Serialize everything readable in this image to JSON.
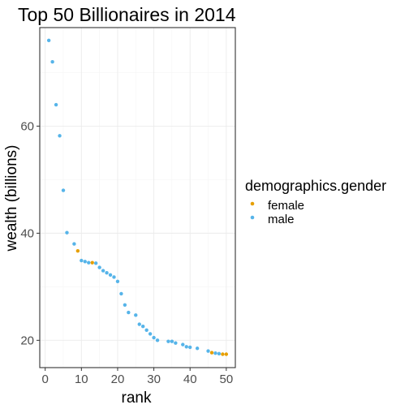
{
  "chart_data": {
    "type": "scatter",
    "title": "Top 50 Billionaires in 2014",
    "xlabel": "rank",
    "ylabel": "wealth (billions)",
    "xlim": [
      -1.5,
      52.5
    ],
    "ylim": [
      14.9,
      78.4
    ],
    "x_ticks": [
      0,
      10,
      20,
      30,
      40,
      50
    ],
    "y_ticks": [
      20,
      40,
      60
    ],
    "grid": true,
    "legend": {
      "title": "demographics.gender",
      "position": "right",
      "entries": [
        {
          "label": "female",
          "color": "#E69F00"
        },
        {
          "label": "male",
          "color": "#56B4E9"
        }
      ]
    },
    "series": [
      {
        "name": "female",
        "color": "#E69F00",
        "points": [
          {
            "x": 9,
            "y": 36.7
          },
          {
            "x": 13,
            "y": 34.5
          },
          {
            "x": 46,
            "y": 17.7
          },
          {
            "x": 49,
            "y": 17.4
          },
          {
            "x": 50,
            "y": 17.4
          }
        ]
      },
      {
        "name": "male",
        "color": "#56B4E9",
        "points": [
          {
            "x": 1,
            "y": 76.0
          },
          {
            "x": 2,
            "y": 72.0
          },
          {
            "x": 3,
            "y": 64.0
          },
          {
            "x": 4,
            "y": 58.2
          },
          {
            "x": 5,
            "y": 48.0
          },
          {
            "x": 6,
            "y": 40.1
          },
          {
            "x": 8,
            "y": 38.0
          },
          {
            "x": 10,
            "y": 34.9
          },
          {
            "x": 11,
            "y": 34.7
          },
          {
            "x": 12,
            "y": 34.5
          },
          {
            "x": 14,
            "y": 34.4
          },
          {
            "x": 15,
            "y": 33.6
          },
          {
            "x": 16,
            "y": 33.0
          },
          {
            "x": 17,
            "y": 32.6
          },
          {
            "x": 18,
            "y": 32.2
          },
          {
            "x": 19,
            "y": 31.8
          },
          {
            "x": 20,
            "y": 31.0
          },
          {
            "x": 21,
            "y": 28.7
          },
          {
            "x": 22,
            "y": 26.6
          },
          {
            "x": 23,
            "y": 25.2
          },
          {
            "x": 25,
            "y": 24.7
          },
          {
            "x": 26,
            "y": 23.0
          },
          {
            "x": 27,
            "y": 22.6
          },
          {
            "x": 28,
            "y": 21.9
          },
          {
            "x": 29,
            "y": 21.2
          },
          {
            "x": 30,
            "y": 20.5
          },
          {
            "x": 31,
            "y": 20.0
          },
          {
            "x": 34,
            "y": 19.8
          },
          {
            "x": 35,
            "y": 19.8
          },
          {
            "x": 36,
            "y": 19.5
          },
          {
            "x": 38,
            "y": 19.2
          },
          {
            "x": 39,
            "y": 18.8
          },
          {
            "x": 40,
            "y": 18.7
          },
          {
            "x": 42,
            "y": 18.5
          },
          {
            "x": 45,
            "y": 18.0
          },
          {
            "x": 47,
            "y": 17.6
          },
          {
            "x": 48,
            "y": 17.5
          }
        ]
      }
    ]
  }
}
